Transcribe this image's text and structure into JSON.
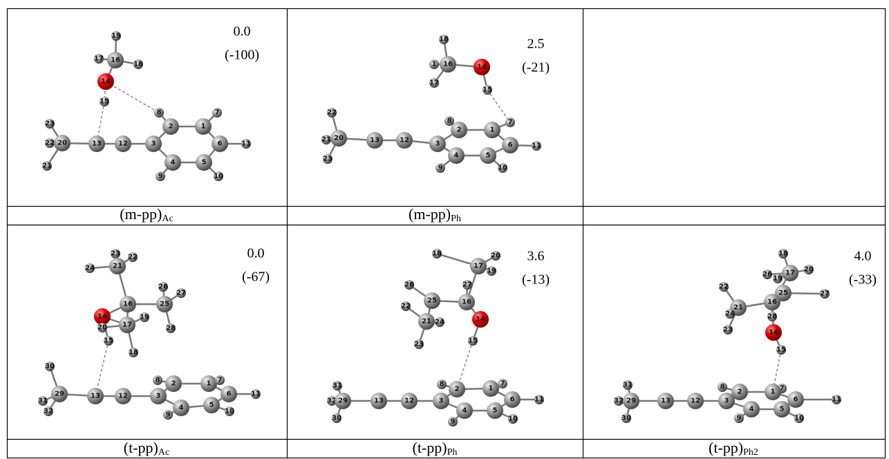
{
  "panels": [
    {
      "caption": {
        "main": "(m-pp)",
        "sub": "Ac"
      },
      "energy": "0.0",
      "relative": "(-100)",
      "atoms": [
        "19",
        "17",
        "16",
        "18",
        "14",
        "15",
        "8",
        "7",
        "2",
        "1",
        "23",
        "22",
        "20",
        "21",
        "13",
        "12",
        "3",
        "6",
        "11",
        "4",
        "5",
        "9",
        "10"
      ]
    },
    {
      "caption": {
        "main": "(m-pp)",
        "sub": "Ph"
      },
      "energy": "2.5",
      "relative": "(-21)",
      "atoms": [
        "18",
        "1",
        "16",
        "14",
        "17",
        "15",
        "8",
        "7",
        "2",
        "1",
        "22",
        "21",
        "20",
        "23",
        "13",
        "12",
        "3",
        "6",
        "11",
        "4",
        "5",
        "9",
        "10"
      ]
    },
    {
      "caption": {
        "main": "(t-pp)",
        "sub": "Ac"
      },
      "energy": "0.0",
      "relative": "(-67)",
      "atoms": [
        "23",
        "22",
        "21",
        "24",
        "26",
        "27",
        "16",
        "25",
        "14",
        "19",
        "17",
        "20",
        "15",
        "28",
        "18",
        "30",
        "29",
        "31",
        "32",
        "13",
        "12",
        "8",
        "2",
        "1",
        "7",
        "3",
        "6",
        "11",
        "4",
        "5",
        "9",
        "10"
      ]
    },
    {
      "caption": {
        "main": "(t-pp)",
        "sub": "Ph"
      },
      "energy": "3.6",
      "relative": "(-13)",
      "atoms": [
        "18",
        "20",
        "17",
        "19",
        "27",
        "26",
        "25",
        "16",
        "22",
        "21",
        "24",
        "14",
        "23",
        "15",
        "31",
        "32",
        "29",
        "30",
        "13",
        "12",
        "8",
        "2",
        "1",
        "7",
        "3",
        "6",
        "11",
        "4",
        "5",
        "9",
        "10"
      ]
    },
    {
      "caption": {
        "main": "(t-pp)",
        "sub": "Ph2"
      },
      "energy": "4.0",
      "relative": "(-33)",
      "atoms": [
        "18",
        "20",
        "26",
        "17",
        "19",
        "22",
        "27",
        "25",
        "16",
        "21",
        "24",
        "28",
        "23",
        "14",
        "15",
        "31",
        "32",
        "29",
        "30",
        "13",
        "12",
        "8",
        "2",
        "7",
        "1",
        "3",
        "6",
        "11",
        "4",
        "5",
        "9",
        "10"
      ]
    }
  ]
}
